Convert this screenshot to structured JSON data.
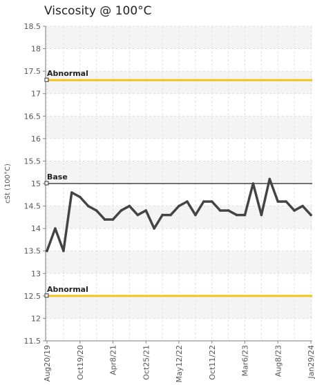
{
  "chart_data": {
    "type": "line",
    "title": "Viscosity @ 100°C",
    "ylabel": "cSt (100°C)",
    "ylim": [
      11.5,
      18.5
    ],
    "yticks": [
      "11.5",
      "12",
      "12.5",
      "13",
      "13.5",
      "14",
      "14.5",
      "15",
      "15.5",
      "16",
      "16.5",
      "17",
      "17.5",
      "18",
      "18.5"
    ],
    "x_tick_labels": [
      "Aug20/19",
      "Oct19/20",
      "Apr8/21",
      "Oct25/21",
      "May12/22",
      "Oct11/22",
      "Mar6/23",
      "Aug8/23",
      "Jan29/24"
    ],
    "x_tick_index": [
      0,
      4,
      8,
      12,
      16,
      20,
      24,
      28,
      32
    ],
    "grid": true,
    "series": [
      {
        "values": [
          13.5,
          14.0,
          13.5,
          14.8,
          14.7,
          14.5,
          14.4,
          14.2,
          14.2,
          14.4,
          14.5,
          14.3,
          14.4,
          14.0,
          14.3,
          14.3,
          14.5,
          14.6,
          14.3,
          14.6,
          14.6,
          14.4,
          14.4,
          14.3,
          14.3,
          15.0,
          14.3,
          15.1,
          14.6,
          14.6,
          14.4,
          14.5,
          14.3
        ],
        "color": "#444444"
      }
    ],
    "reference_lines": [
      {
        "label": "Abnormal",
        "value": 17.3,
        "color": "#f2c31b"
      },
      {
        "label": "Base",
        "value": 15.0,
        "color": "#444444"
      },
      {
        "label": "Abnormal",
        "value": 12.5,
        "color": "#f2c31b"
      }
    ]
  }
}
